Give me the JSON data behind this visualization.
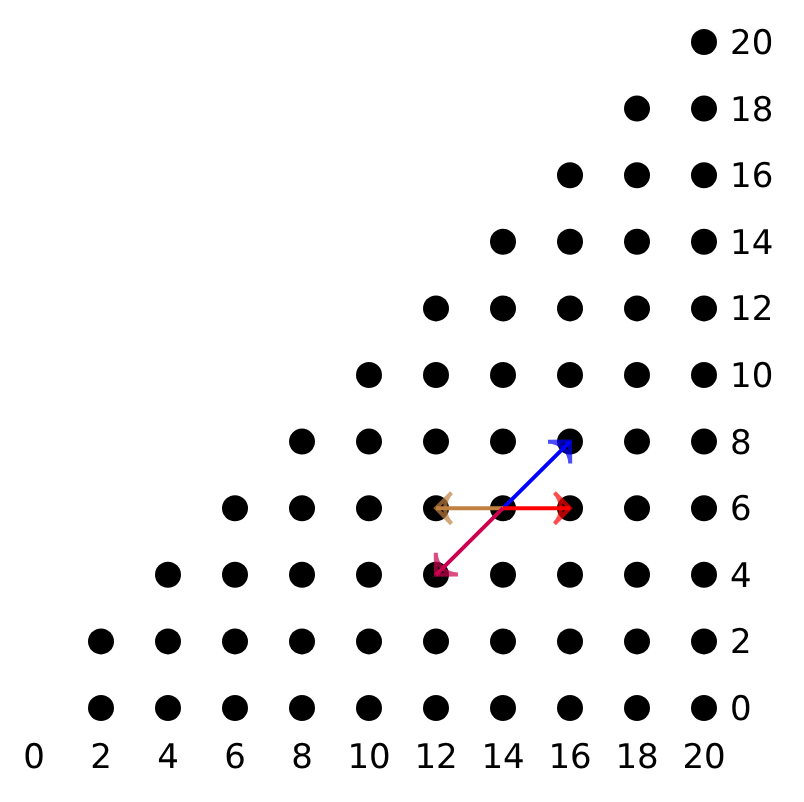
{
  "chart_data": {
    "type": "scatter",
    "marker": "circle",
    "grid": false,
    "xlim": [
      0,
      20
    ],
    "ylim": [
      0,
      20
    ],
    "xticks": [
      0,
      2,
      4,
      6,
      8,
      10,
      12,
      14,
      16,
      18,
      20
    ],
    "yticks": [
      0,
      2,
      4,
      6,
      8,
      10,
      12,
      14,
      16,
      18,
      20
    ],
    "series": [
      {
        "color": "#000000",
        "x": [
          2,
          2,
          4,
          4,
          4,
          6,
          6,
          6,
          6,
          8,
          8,
          8,
          8,
          8,
          10,
          10,
          10,
          10,
          10,
          10,
          12,
          12,
          12,
          12,
          12,
          12,
          12,
          14,
          14,
          14,
          14,
          14,
          14,
          14,
          14,
          16,
          16,
          16,
          16,
          16,
          16,
          16,
          16,
          16,
          18,
          18,
          18,
          18,
          18,
          18,
          18,
          18,
          18,
          18,
          20,
          20,
          20,
          20,
          20,
          20,
          20,
          20,
          20,
          20,
          20
        ],
        "values": [
          0,
          2,
          0,
          2,
          4,
          0,
          2,
          4,
          6,
          0,
          2,
          4,
          6,
          8,
          0,
          2,
          4,
          6,
          8,
          10,
          0,
          2,
          4,
          6,
          8,
          10,
          12,
          0,
          2,
          4,
          6,
          8,
          10,
          12,
          14,
          0,
          2,
          4,
          6,
          8,
          10,
          12,
          14,
          16,
          0,
          2,
          4,
          6,
          8,
          10,
          12,
          14,
          16,
          18,
          0,
          2,
          4,
          6,
          8,
          10,
          12,
          14,
          16,
          18,
          20
        ]
      },
      {
        "type": "line",
        "color": "#0000ff",
        "x": [
          14,
          16
        ],
        "values": [
          6,
          8
        ]
      },
      {
        "type": "line",
        "color": "#ff0000",
        "x": [
          14,
          16
        ],
        "values": [
          6,
          6
        ]
      },
      {
        "type": "line",
        "color": "#c08040",
        "x": [
          14,
          12
        ],
        "values": [
          6,
          6
        ]
      },
      {
        "type": "line",
        "color": "#cc0050",
        "x": [
          14,
          12
        ],
        "values": [
          6,
          4
        ]
      }
    ]
  }
}
